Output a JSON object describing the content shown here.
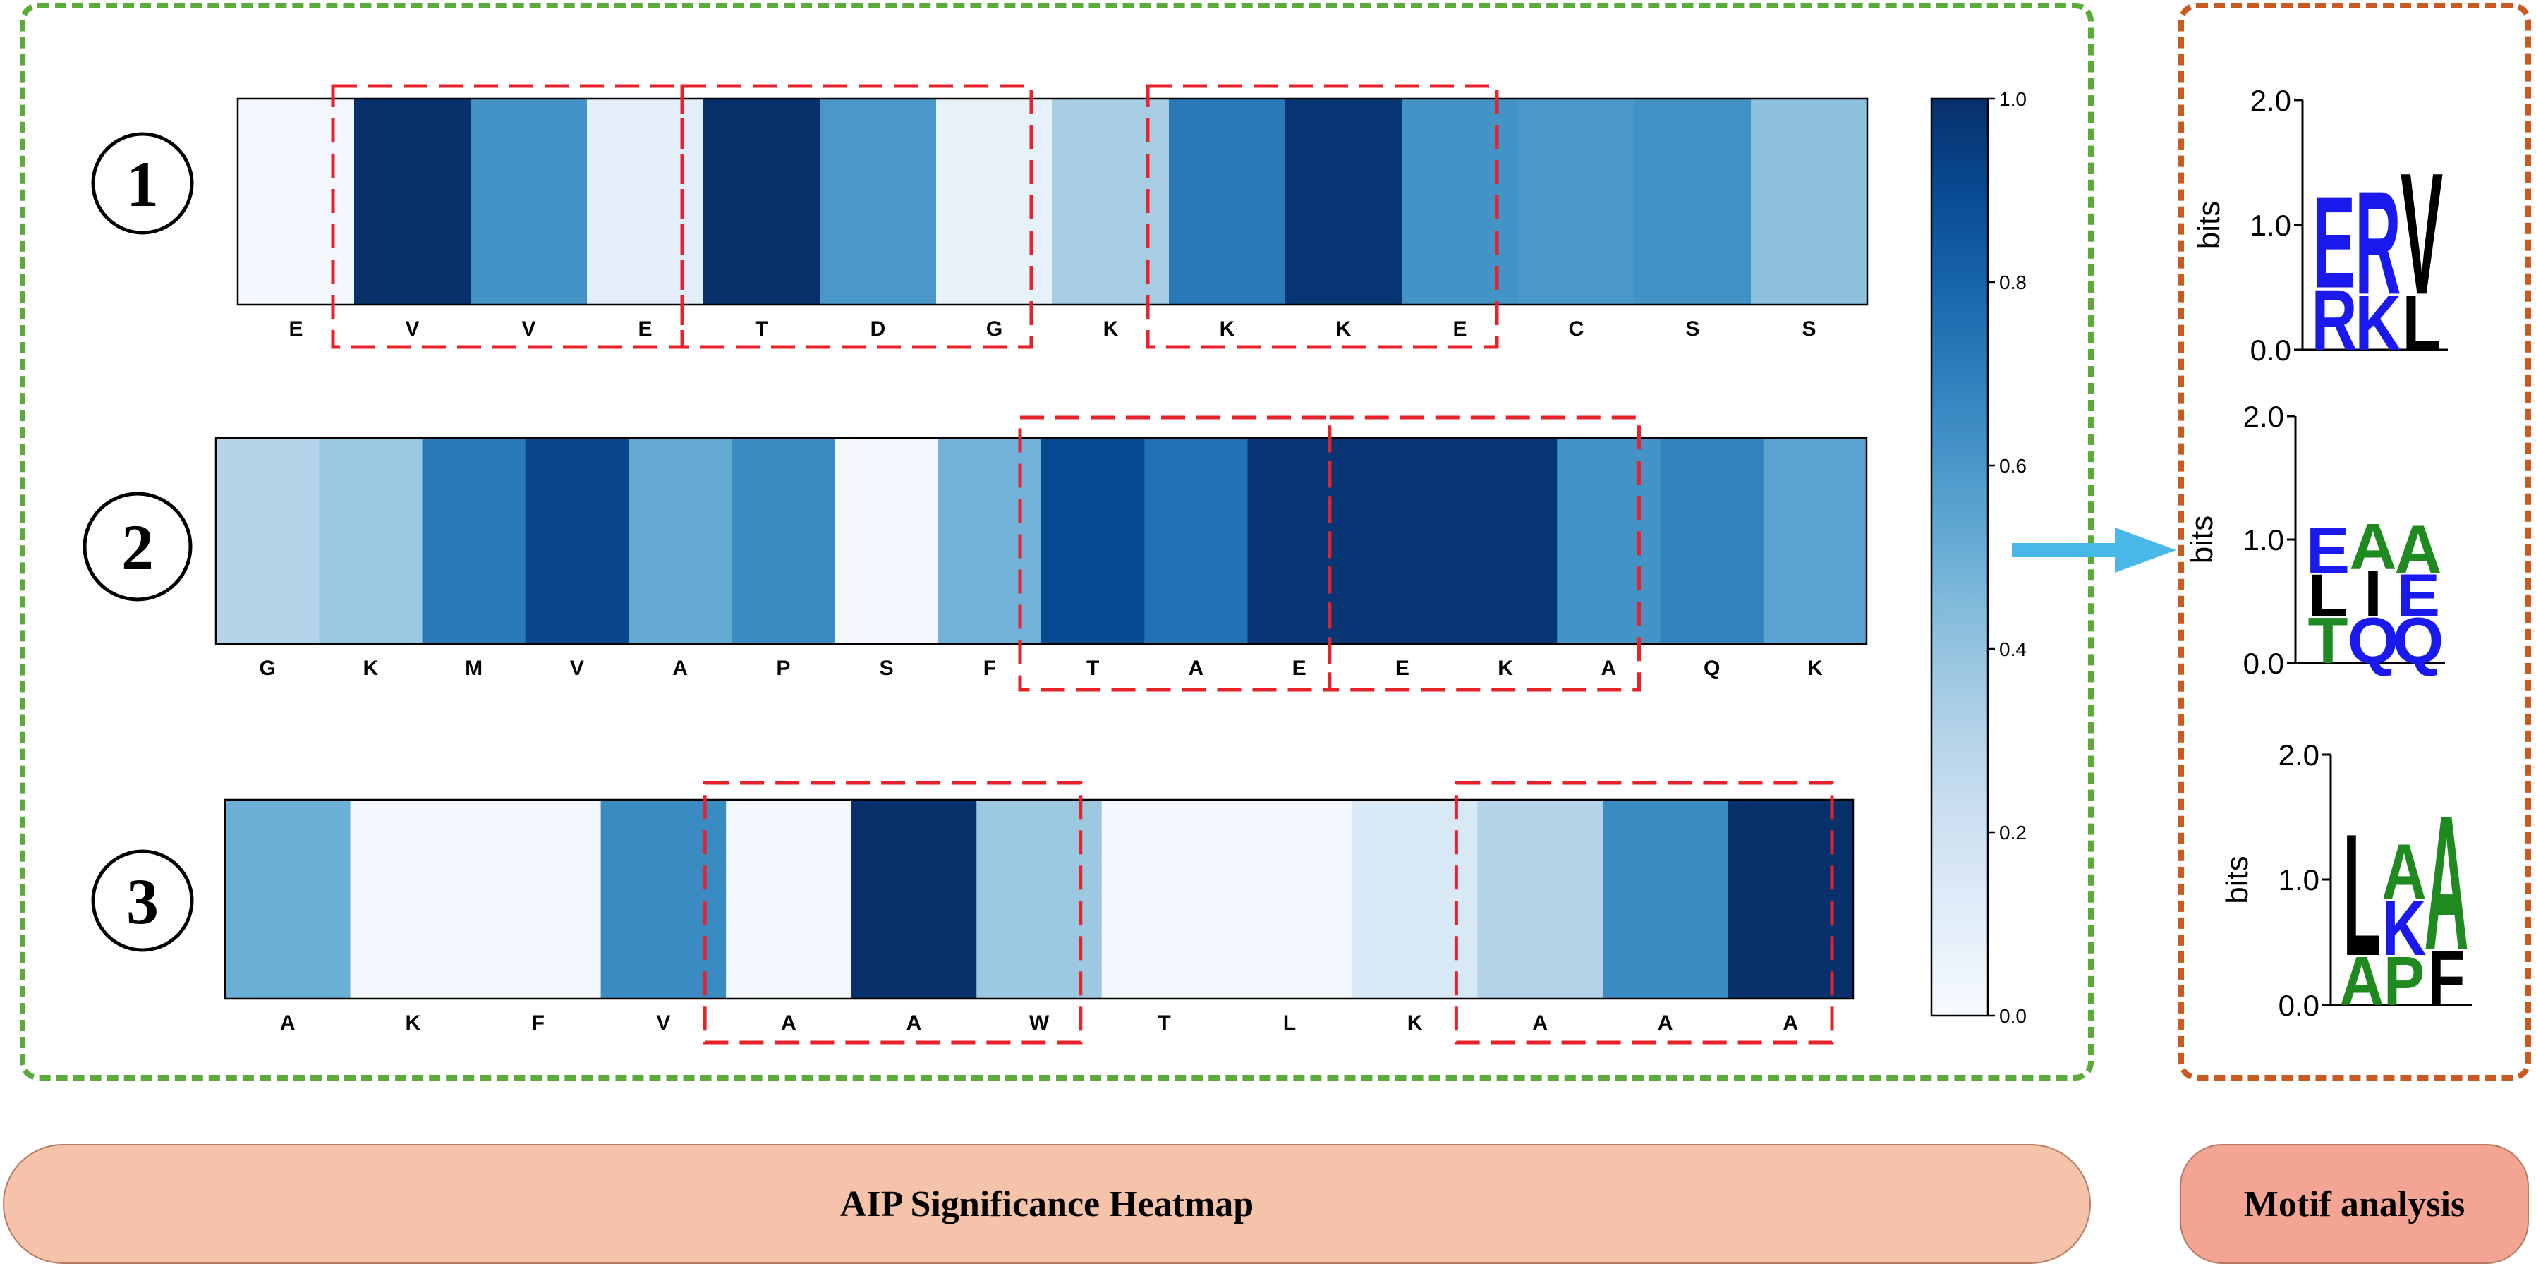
{
  "colorscale": {
    "max": "1.0",
    "ticks": [
      "1.0",
      "0.8",
      "0.6",
      "0.4",
      "0.2",
      "0.0"
    ]
  },
  "heatmaps": [
    {
      "index": "1",
      "letters": [
        "E",
        "V",
        "V",
        "E",
        "T",
        "D",
        "G",
        "K",
        "K",
        "K",
        "E",
        "C",
        "S",
        "S"
      ],
      "values": [
        0.02,
        1.0,
        0.62,
        0.1,
        1.0,
        0.6,
        0.08,
        0.35,
        0.72,
        0.98,
        0.62,
        0.6,
        0.63,
        0.42
      ],
      "highlight_groups": [
        [
          1,
          3
        ],
        [
          4,
          6
        ],
        [
          8,
          10
        ]
      ]
    },
    {
      "index": "2",
      "letters": [
        "G",
        "K",
        "M",
        "V",
        "A",
        "P",
        "S",
        "F",
        "T",
        "A",
        "E",
        "E",
        "K",
        "A",
        "Q",
        "K"
      ],
      "values": [
        0.3,
        0.38,
        0.72,
        0.92,
        0.52,
        0.65,
        0.02,
        0.48,
        0.9,
        0.75,
        0.98,
        0.98,
        0.98,
        0.62,
        0.68,
        0.55
      ],
      "highlight_groups": [
        [
          8,
          10
        ],
        [
          11,
          13
        ]
      ]
    },
    {
      "index": "3",
      "letters": [
        "A",
        "K",
        "F",
        "V",
        "A",
        "A",
        "W",
        "T",
        "L",
        "K",
        "A",
        "A",
        "A"
      ],
      "values": [
        0.5,
        0.02,
        0.02,
        0.65,
        0.02,
        1.0,
        0.38,
        0.02,
        0.02,
        0.15,
        0.3,
        0.65,
        1.0
      ],
      "highlight_groups": [
        [
          4,
          6
        ],
        [
          10,
          12
        ]
      ]
    }
  ],
  "motifs": {
    "ylabel": "bits",
    "ticks": [
      "2.0",
      "1.0",
      "0.0"
    ],
    "logos": [
      {
        "columns": [
          [
            {
              "char": "R",
              "height": 0.5,
              "color": "#1a1aee"
            },
            {
              "char": "E",
              "height": 0.75,
              "color": "#1a1aee"
            }
          ],
          [
            {
              "char": "K",
              "height": 0.45,
              "color": "#1a1aee"
            },
            {
              "char": "R",
              "height": 0.85,
              "color": "#1a1aee"
            }
          ],
          [
            {
              "char": "L",
              "height": 0.45,
              "color": "#000000"
            },
            {
              "char": "V",
              "height": 1.0,
              "color": "#000000"
            }
          ]
        ]
      },
      {
        "columns": [
          [
            {
              "char": "T",
              "height": 0.38,
              "color": "#1f8a1f"
            },
            {
              "char": "L",
              "height": 0.35,
              "color": "#000000"
            },
            {
              "char": "E",
              "height": 0.38,
              "color": "#1a1aee"
            }
          ],
          [
            {
              "char": "Q",
              "height": 0.38,
              "color": "#1a1aee"
            },
            {
              "char": "I",
              "height": 0.38,
              "color": "#000000"
            },
            {
              "char": "A",
              "height": 0.38,
              "color": "#1f8a1f"
            }
          ],
          [
            {
              "char": "Q",
              "height": 0.38,
              "color": "#1a1aee"
            },
            {
              "char": "E",
              "height": 0.35,
              "color": "#1a1aee"
            },
            {
              "char": "A",
              "height": 0.4,
              "color": "#1f8a1f"
            }
          ]
        ]
      },
      {
        "columns": [
          [
            {
              "char": "A",
              "height": 0.4,
              "color": "#1f8a1f"
            },
            {
              "char": "L",
              "height": 1.0,
              "color": "#000000"
            }
          ],
          [
            {
              "char": "P",
              "height": 0.4,
              "color": "#1f8a1f"
            },
            {
              "char": "K",
              "height": 0.45,
              "color": "#1a1aee"
            },
            {
              "char": "A",
              "height": 0.45,
              "color": "#1f8a1f"
            }
          ],
          [
            {
              "char": "F",
              "height": 0.45,
              "color": "#000000"
            },
            {
              "char": "A",
              "height": 1.1,
              "color": "#1f8a1f"
            }
          ]
        ]
      }
    ]
  },
  "arrow_color": "#49b8e8",
  "labels": {
    "heatmap": "AIP Significance Heatmap",
    "motif": "Motif analysis"
  }
}
